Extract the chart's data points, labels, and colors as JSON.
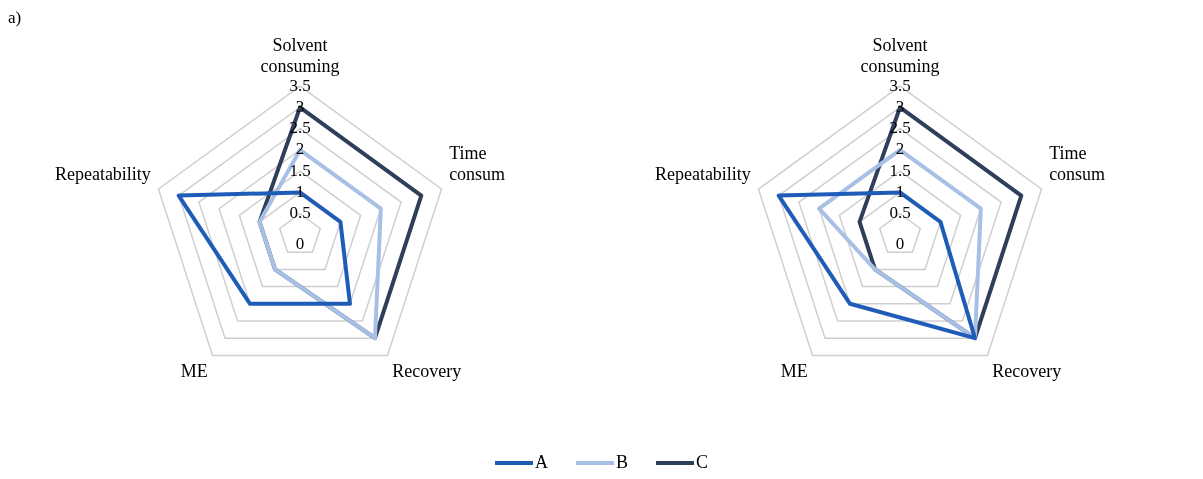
{
  "chart_data": [
    {
      "type": "radar",
      "annotations": [
        "a)"
      ],
      "categories": [
        "Solvent consuming",
        "Time consum",
        "Recovery",
        "ME",
        "Repeatability"
      ],
      "ylim": [
        0,
        3.5
      ],
      "yticks": [
        0,
        0.5,
        1,
        1.5,
        2,
        2.5,
        3,
        3.5
      ],
      "grid": true,
      "legend": "bottom",
      "marker": "none",
      "series": [
        {
          "name": "A",
          "color": "#1f5cb8",
          "values": [
            1,
            1,
            2,
            2,
            3
          ]
        },
        {
          "name": "B",
          "color": "#a9c0e6",
          "values": [
            2,
            2,
            3,
            1,
            1
          ]
        },
        {
          "name": "C",
          "color": "#2f3e5a",
          "values": [
            3,
            3,
            3,
            1,
            1
          ]
        }
      ]
    },
    {
      "type": "radar",
      "categories": [
        "Solvent consuming",
        "Time consum",
        "Recovery",
        "ME",
        "Repeatability"
      ],
      "ylim": [
        0,
        3.5
      ],
      "yticks": [
        0,
        0.5,
        1,
        1.5,
        2,
        2.5,
        3,
        3.5
      ],
      "grid": true,
      "legend": "bottom",
      "marker": "none",
      "series": [
        {
          "name": "A",
          "color": "#1f5cb8",
          "values": [
            1,
            1,
            3,
            2,
            3
          ]
        },
        {
          "name": "B",
          "color": "#a9c0e6",
          "values": [
            2,
            2,
            3,
            1,
            2
          ]
        },
        {
          "name": "C",
          "color": "#2f3e5a",
          "values": [
            3,
            3,
            3,
            1,
            1
          ]
        }
      ]
    }
  ]
}
